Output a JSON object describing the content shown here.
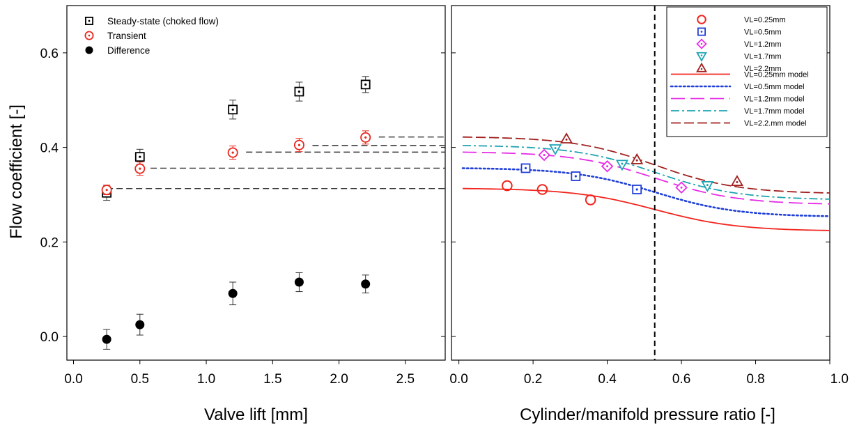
{
  "chart_data": [
    {
      "type": "scatter",
      "xlabel": "Valve lift [mm]",
      "ylabel": "Flow coefficient [-]",
      "xlim": [
        -0.05,
        2.8
      ],
      "ylim": [
        -0.05,
        0.7
      ],
      "xticks": [
        "0.0",
        "0.5",
        "1.0",
        "1.5",
        "2.0",
        "2.5"
      ],
      "yticks": [
        "0.0",
        "0.2",
        "0.4",
        "0.6"
      ],
      "legend_position": "top-left",
      "grid": false,
      "series": [
        {
          "name": "Steady-state (choked flow)",
          "marker": "dotted-square",
          "color": "#000000",
          "x": [
            0.25,
            0.5,
            1.2,
            1.7,
            2.2
          ],
          "y": [
            0.304,
            0.38,
            0.48,
            0.518,
            0.533
          ],
          "err": [
            0.016,
            0.016,
            0.02,
            0.02,
            0.017
          ]
        },
        {
          "name": "Transient",
          "marker": "dotted-circle",
          "color": "#e8271e",
          "x": [
            0.25,
            0.5,
            1.2,
            1.7,
            2.2
          ],
          "y": [
            0.31,
            0.355,
            0.389,
            0.405,
            0.421
          ],
          "err": [
            0.01,
            0.014,
            0.014,
            0.014,
            0.014
          ]
        },
        {
          "name": "Difference",
          "marker": "filled-circle",
          "color": "#000000",
          "x": [
            0.25,
            0.5,
            1.2,
            1.7,
            2.2
          ],
          "y": [
            -0.006,
            0.025,
            0.091,
            0.115,
            0.111
          ],
          "err": [
            0.021,
            0.022,
            0.024,
            0.02,
            0.019
          ]
        }
      ],
      "reference_lines": [
        {
          "y": 0.313,
          "x_from": 0.25,
          "x_to": 2.8
        },
        {
          "y": 0.356,
          "x_from": 0.58,
          "x_to": 2.8
        },
        {
          "y": 0.39,
          "x_from": 1.3,
          "x_to": 2.8
        },
        {
          "y": 0.404,
          "x_from": 1.8,
          "x_to": 2.8
        },
        {
          "y": 0.422,
          "x_from": 2.3,
          "x_to": 2.8
        }
      ]
    },
    {
      "type": "line",
      "xlabel": "Cylinder/manifold pressure ratio [-]",
      "ylabel": "",
      "xlim": [
        -0.02,
        1.0
      ],
      "ylim": [
        -0.05,
        0.7
      ],
      "xticks": [
        "0.0",
        "0.2",
        "0.4",
        "0.6",
        "0.8",
        "1.0"
      ],
      "legend_position": "top-right",
      "grid": false,
      "vertical_line": {
        "x": 0.528,
        "style": "dashed",
        "color": "#000000"
      },
      "points": [
        {
          "name": "VL=0.25mm",
          "marker": "circle",
          "color": "#f2231c",
          "x": [
            0.13,
            0.225,
            0.355
          ],
          "y": [
            0.319,
            0.311,
            0.289
          ]
        },
        {
          "name": "VL=0.5mm",
          "marker": "dotted-square",
          "color": "#1f3fd6",
          "x": [
            0.18,
            0.315,
            0.48
          ],
          "y": [
            0.356,
            0.339,
            0.311
          ]
        },
        {
          "name": "VL=1.2mm",
          "marker": "dotted-diamond",
          "color": "#e62ce6",
          "x": [
            0.23,
            0.4,
            0.6
          ],
          "y": [
            0.384,
            0.36,
            0.315
          ]
        },
        {
          "name": "VL=1.7mm",
          "marker": "dotted-triangle-down",
          "color": "#1fa3b3",
          "x": [
            0.26,
            0.44,
            0.67
          ],
          "y": [
            0.397,
            0.364,
            0.319
          ]
        },
        {
          "name": "VL=2.2mm",
          "marker": "dotted-triangle-up",
          "color": "#a0201e",
          "x": [
            0.29,
            0.48,
            0.75
          ],
          "y": [
            0.418,
            0.374,
            0.328
          ]
        }
      ],
      "models": [
        {
          "name": "VL=0.25mm model",
          "style": "solid",
          "color": "#f2231c",
          "high": 0.313,
          "low": 0.223
        },
        {
          "name": "VL=0.5mm model",
          "style": "dotted",
          "color": "#1f3fd6",
          "high": 0.356,
          "low": 0.253
        },
        {
          "name": "VL=1.2mm model",
          "style": "long-dash",
          "color": "#e62ce6",
          "high": 0.39,
          "low": 0.279
        },
        {
          "name": "VL=1.7mm model",
          "style": "dash-dot",
          "color": "#1fa3b3",
          "high": 0.404,
          "low": 0.289
        },
        {
          "name": "VL=2.2.mm model",
          "style": "dash",
          "color": "#a0201e",
          "high": 0.422,
          "low": 0.302
        }
      ]
    }
  ]
}
